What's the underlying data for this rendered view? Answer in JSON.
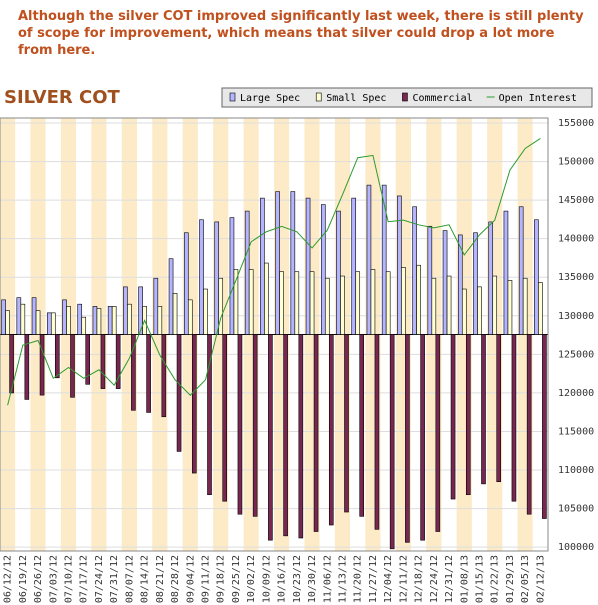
{
  "chart_data": {
    "type": "bar",
    "annotation": "Although the silver COT improved significantly last week, there is still plenty of scope for improvement, which means that silver could drop a lot more from here.",
    "title": "SILVER COT",
    "legend": "top-right",
    "categories": [
      "06/12/12",
      "06/19/12",
      "06/26/12",
      "07/03/12",
      "07/10/12",
      "07/17/12",
      "07/24/12",
      "07/31/12",
      "08/07/12",
      "08/14/12",
      "08/21/12",
      "08/28/12",
      "09/04/12",
      "09/11/12",
      "09/18/12",
      "09/25/12",
      "10/02/12",
      "10/09/12",
      "10/16/12",
      "10/23/12",
      "10/30/12",
      "11/06/12",
      "11/13/12",
      "11/20/12",
      "11/27/12",
      "12/04/12",
      "12/11/12",
      "12/18/12",
      "12/24/12",
      "12/31/12",
      "01/08/13",
      "01/15/13",
      "01/22/13",
      "01/29/13",
      "02/05/13",
      "02/12/13"
    ],
    "ylim": [
      -100,
      100
    ],
    "series": [
      {
        "name": "Large Spec",
        "color": "#b4b4ff",
        "values": [
          16,
          17,
          17,
          10,
          16,
          14,
          13,
          13,
          22,
          22,
          26,
          35,
          47,
          53,
          52,
          54,
          57,
          63,
          66,
          66,
          63,
          60,
          57,
          63,
          69,
          69,
          64,
          59,
          50,
          48,
          46,
          47,
          52,
          57,
          59,
          53
        ]
      },
      {
        "name": "Small Spec",
        "color": "#ffffd2",
        "values": [
          11,
          14,
          11,
          10,
          13,
          8,
          12,
          13,
          14,
          13,
          13,
          19,
          16,
          21,
          26,
          30,
          30,
          33,
          29,
          29,
          29,
          26,
          27,
          29,
          30,
          29,
          31,
          32,
          26,
          27,
          21,
          22,
          27,
          25,
          26,
          24
        ]
      },
      {
        "name": "Commercial",
        "color": "#782850",
        "values": [
          -27,
          -30,
          -28,
          -20,
          -29,
          -23,
          -25,
          -25,
          -35,
          -36,
          -38,
          -54,
          -64,
          -74,
          -77,
          -83,
          -84,
          -95,
          -93,
          -94,
          -91,
          -88,
          -82,
          -84,
          -90,
          -99,
          -96,
          -95,
          -91,
          -76,
          -74,
          -69,
          -68,
          -77,
          -83,
          -85
        ]
      },
      {
        "name": "Open Interest",
        "type": "line",
        "axis": "y2",
        "color": "#2e9a2e",
        "values": [
          118400,
          126200,
          126800,
          121900,
          123300,
          121900,
          123000,
          121000,
          124500,
          129400,
          124900,
          121700,
          119700,
          121700,
          129700,
          134600,
          139600,
          140900,
          141600,
          140900,
          138800,
          141100,
          145700,
          150500,
          150800,
          142200,
          142400,
          141800,
          141400,
          141800,
          137900,
          140500,
          142400,
          148900,
          151700,
          153000
        ]
      }
    ],
    "y2lim": [
      99500,
      155650
    ],
    "y2ticks": [
      100000,
      105000,
      110000,
      115000,
      120000,
      125000,
      130000,
      135000,
      140000,
      145000,
      150000,
      155000
    ]
  }
}
